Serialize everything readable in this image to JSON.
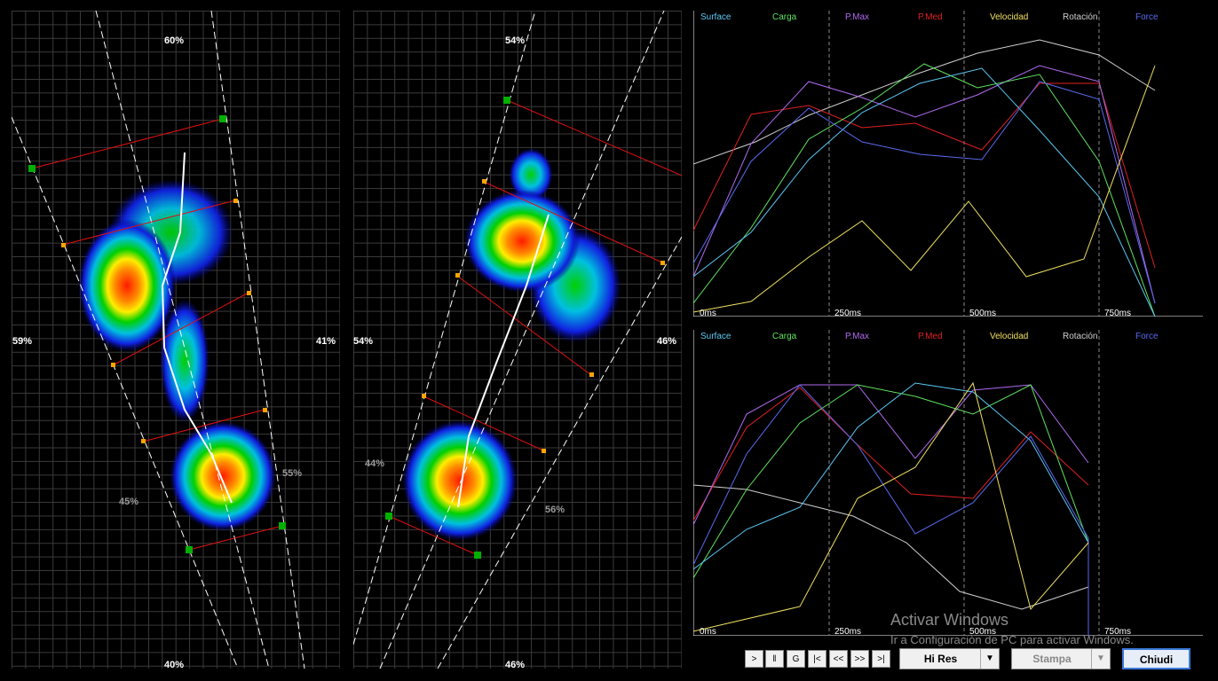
{
  "left_foot": {
    "pct_top": "60%",
    "pct_left": "59%",
    "pct_right": "41%",
    "pct_bottom": "40%",
    "pct_heel_right": "55%",
    "pct_heel_left": "45%"
  },
  "right_foot": {
    "pct_top": "54%",
    "pct_left": "54%",
    "pct_right": "46%",
    "pct_bottom": "46%",
    "pct_heel_left": "44%",
    "pct_heel_right": "56%"
  },
  "legend": [
    {
      "label": "Surface",
      "color": "#5bc8f5"
    },
    {
      "label": "Carga",
      "color": "#5fe35f"
    },
    {
      "label": "P.Max",
      "color": "#b06af0"
    },
    {
      "label": "P.Med",
      "color": "#e02020"
    },
    {
      "label": "Velocidad",
      "color": "#f0e060"
    },
    {
      "label": "Rotación",
      "color": "#d0d0d0"
    },
    {
      "label": "Force",
      "color": "#5a6af0"
    }
  ],
  "chart_top": {
    "ticks": [
      "0ms",
      "250ms",
      "500ms",
      "750ms"
    ]
  },
  "chart_bottom": {
    "ticks": [
      "0ms",
      "250ms",
      "500ms",
      "750ms"
    ]
  },
  "toolbar": {
    "play": ">",
    "pause": "‖",
    "g": "G",
    "first": "|<",
    "prev": "<<",
    "next": ">>",
    "last": ">|",
    "hires_label": "Hi Res",
    "stampa_label": "Stampa",
    "chiudi_label": "Chiudi",
    "dropdown_arrow": "▼"
  },
  "watermark": {
    "title": "Activar Windows",
    "subtitle": "Ir a Configuración de PC para activar Windows."
  }
}
